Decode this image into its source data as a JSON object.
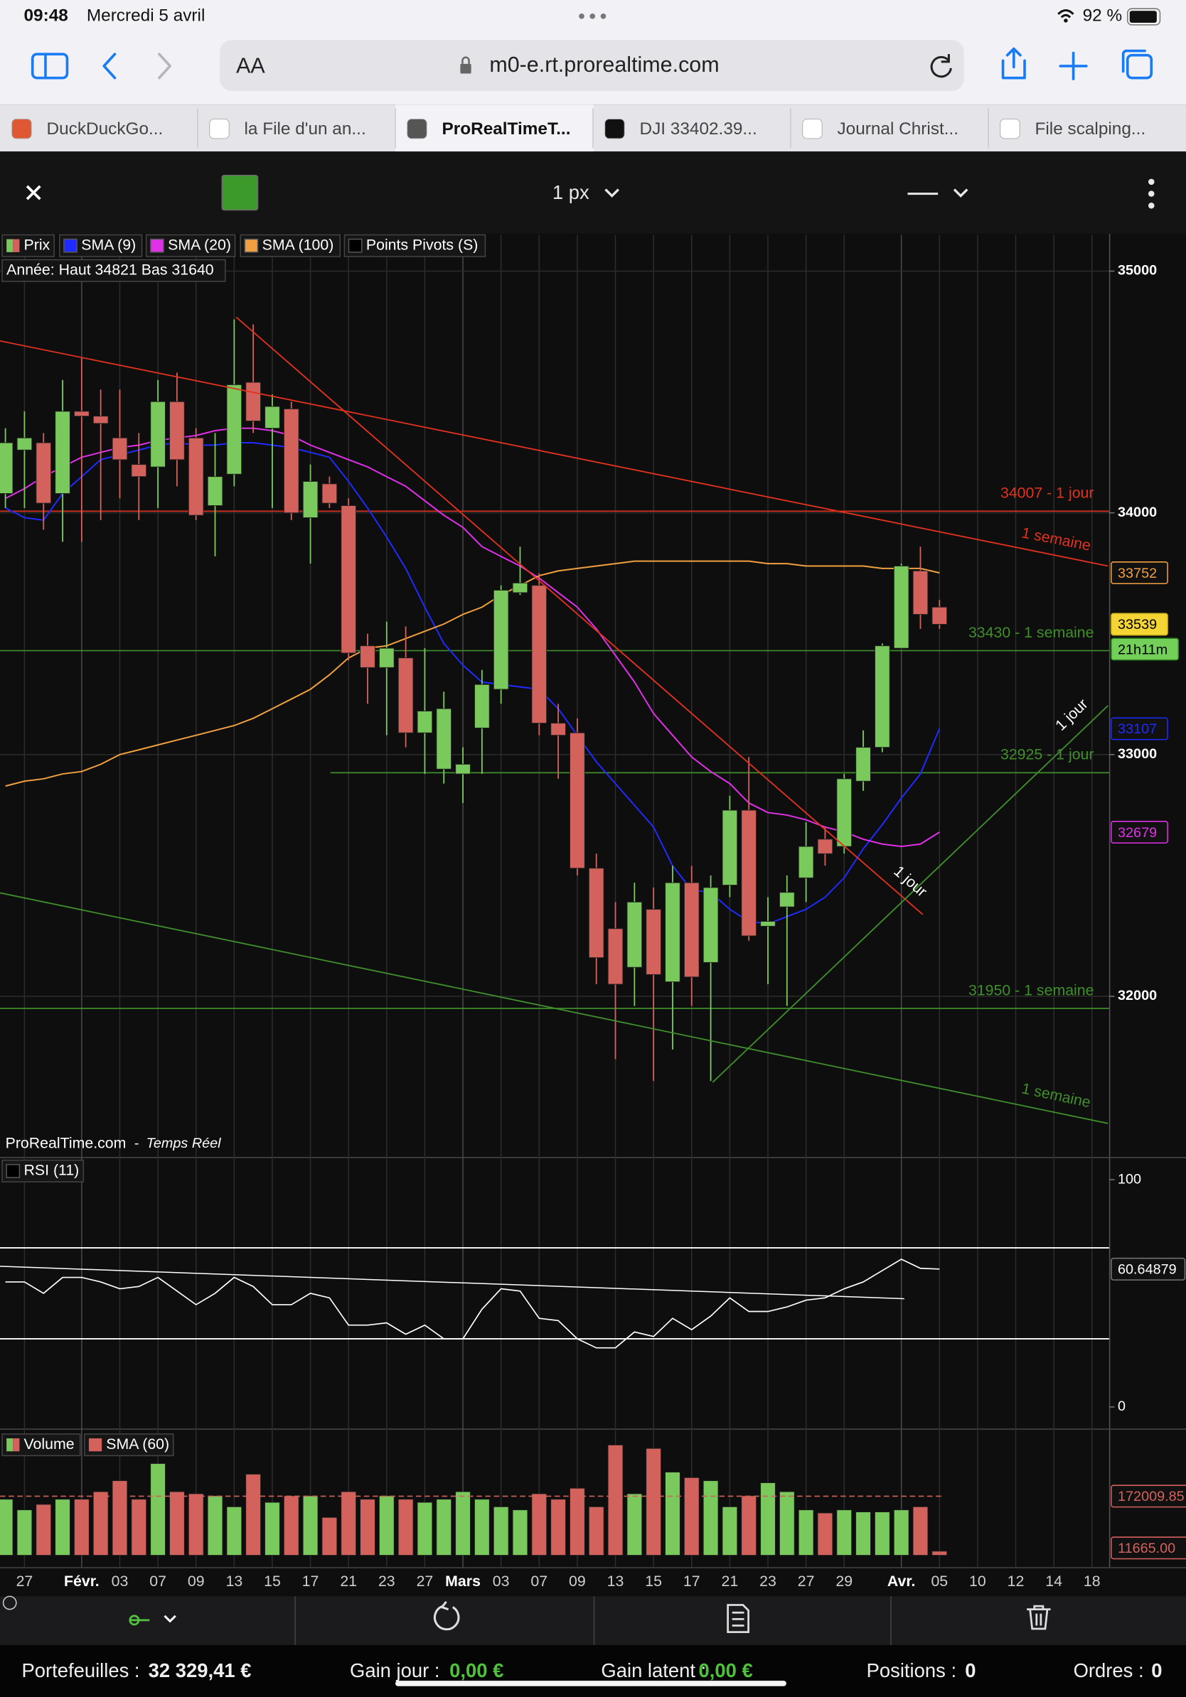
{
  "status_bar": {
    "time": "09:48",
    "date": "Mercredi 5 avril",
    "battery": "92 %"
  },
  "browser": {
    "text_size": "AA",
    "url": "m0-e.rt.prorealtime.com",
    "tabs": [
      "DuckDuckGo...",
      "la File d'un an...",
      "ProRealTimeT...",
      "DJI 33402.39...",
      "Journal Christ...",
      "File scalping..."
    ]
  },
  "chart_toolbar": {
    "line_width": "1 px"
  },
  "chart_data": [
    {
      "type": "candlestick",
      "candle_name": "Prix",
      "extra_legend": "Points Pivots (S)",
      "info": "Année: Haut 34821 Bas 31640",
      "source": "ProRealTime.com",
      "source_note": "Temps Réel",
      "countdown": "21h11m",
      "up_color": "#79c95d",
      "down_color": "#d3625d",
      "grid": true,
      "ylim": [
        31340,
        35150
      ],
      "yticks": [
        35000,
        34000,
        33000,
        32000
      ],
      "categories": [
        null,
        "27",
        null,
        null,
        "Févr.",
        null,
        "03",
        null,
        "07",
        null,
        "09",
        null,
        "13",
        null,
        "15",
        null,
        "17",
        null,
        "21",
        null,
        "23",
        null,
        "27",
        null,
        "Mars",
        null,
        "03",
        null,
        "07",
        null,
        "09",
        null,
        "13",
        null,
        "15",
        null,
        "17",
        null,
        "21",
        null,
        "23",
        null,
        "27",
        null,
        "29",
        null,
        null,
        "Avr.",
        null,
        "05",
        null,
        "10",
        null,
        "12",
        null,
        "14",
        null,
        "18"
      ],
      "candles": [
        {
          "open": 34080,
          "high": 34350,
          "low": 34020,
          "close": 34290
        },
        {
          "open": 34260,
          "high": 34420,
          "low": 34020,
          "close": 34310
        },
        {
          "open": 34290,
          "high": 34330,
          "low": 33930,
          "close": 34040
        },
        {
          "open": 34080,
          "high": 34550,
          "low": 33880,
          "close": 34420
        },
        {
          "open": 34420,
          "high": 34640,
          "low": 33880,
          "close": 34400
        },
        {
          "open": 34400,
          "high": 34510,
          "low": 33970,
          "close": 34370
        },
        {
          "open": 34310,
          "high": 34510,
          "low": 34060,
          "close": 34220
        },
        {
          "open": 34200,
          "high": 34330,
          "low": 33970,
          "close": 34150
        },
        {
          "open": 34190,
          "high": 34550,
          "low": 34020,
          "close": 34460
        },
        {
          "open": 34460,
          "high": 34580,
          "low": 34110,
          "close": 34220
        },
        {
          "open": 34310,
          "high": 34350,
          "low": 33970,
          "close": 33990
        },
        {
          "open": 34030,
          "high": 34330,
          "low": 33820,
          "close": 34150
        },
        {
          "open": 34160,
          "high": 34800,
          "low": 34110,
          "close": 34530
        },
        {
          "open": 34540,
          "high": 34780,
          "low": 34330,
          "close": 34380
        },
        {
          "open": 34350,
          "high": 34490,
          "low": 34020,
          "close": 34440
        },
        {
          "open": 34430,
          "high": 34460,
          "low": 33970,
          "close": 34000
        },
        {
          "open": 33980,
          "high": 34200,
          "low": 33790,
          "close": 34130
        },
        {
          "open": 34120,
          "high": 34150,
          "low": 34020,
          "close": 34040
        },
        {
          "open": 34030,
          "high": 34060,
          "low": 33390,
          "close": 33420
        },
        {
          "open": 33450,
          "high": 33500,
          "low": 33210,
          "close": 33360
        },
        {
          "open": 33360,
          "high": 33550,
          "low": 33080,
          "close": 33440
        },
        {
          "open": 33400,
          "high": 33530,
          "low": 33030,
          "close": 33090
        },
        {
          "open": 33090,
          "high": 33440,
          "low": 32920,
          "close": 33180
        },
        {
          "open": 32940,
          "high": 33260,
          "low": 32880,
          "close": 33190
        },
        {
          "open": 32920,
          "high": 33030,
          "low": 32800,
          "close": 32960
        },
        {
          "open": 33110,
          "high": 33350,
          "low": 32920,
          "close": 33290
        },
        {
          "open": 33270,
          "high": 33700,
          "low": 33210,
          "close": 33680
        },
        {
          "open": 33670,
          "high": 33860,
          "low": 33660,
          "close": 33710
        },
        {
          "open": 33700,
          "high": 33750,
          "low": 33080,
          "close": 33130
        },
        {
          "open": 33130,
          "high": 33210,
          "low": 32900,
          "close": 33080
        },
        {
          "open": 33090,
          "high": 33150,
          "low": 32500,
          "close": 32530
        },
        {
          "open": 32530,
          "high": 32590,
          "low": 32050,
          "close": 32160
        },
        {
          "open": 32280,
          "high": 32390,
          "low": 31740,
          "close": 32050
        },
        {
          "open": 32120,
          "high": 32470,
          "low": 31960,
          "close": 32390
        },
        {
          "open": 32360,
          "high": 32450,
          "low": 31650,
          "close": 32090
        },
        {
          "open": 32060,
          "high": 32540,
          "low": 31780,
          "close": 32470
        },
        {
          "open": 32470,
          "high": 32540,
          "low": 31960,
          "close": 32080
        },
        {
          "open": 32140,
          "high": 32500,
          "low": 31650,
          "close": 32450
        },
        {
          "open": 32460,
          "high": 32830,
          "low": 32410,
          "close": 32770
        },
        {
          "open": 32770,
          "high": 32990,
          "low": 32230,
          "close": 32250
        },
        {
          "open": 32290,
          "high": 32410,
          "low": 32050,
          "close": 32310
        },
        {
          "open": 32370,
          "high": 32500,
          "low": 31960,
          "close": 32430
        },
        {
          "open": 32490,
          "high": 32720,
          "low": 32390,
          "close": 32620
        },
        {
          "open": 32650,
          "high": 32700,
          "low": 32540,
          "close": 32590
        },
        {
          "open": 32620,
          "high": 32920,
          "low": 32590,
          "close": 32900
        },
        {
          "open": 32890,
          "high": 33100,
          "low": 32850,
          "close": 33030
        },
        {
          "open": 33030,
          "high": 33460,
          "low": 33010,
          "close": 33450
        },
        {
          "open": 33440,
          "high": 33790,
          "low": 33440,
          "close": 33780
        },
        {
          "open": 33760,
          "high": 33860,
          "low": 33520,
          "close": 33580
        },
        {
          "open": 33610,
          "high": 33640,
          "low": 33520,
          "close": 33539
        },
        null,
        null,
        null,
        null,
        null,
        null,
        null,
        null
      ],
      "series": [
        {
          "name": "SMA (9)",
          "color": "#1f2bff",
          "values": [
            34020,
            33980,
            33970,
            34080,
            34150,
            34220,
            34240,
            34260,
            34280,
            34290,
            34280,
            34280,
            34290,
            34290,
            34280,
            34270,
            34250,
            34230,
            34130,
            34020,
            33900,
            33770,
            33610,
            33460,
            33370,
            33300,
            33290,
            33280,
            33270,
            33190,
            33080,
            32970,
            32880,
            32790,
            32700,
            32540,
            32440,
            32430,
            32360,
            32310,
            32300,
            32330,
            32360,
            32410,
            32490,
            32610,
            32710,
            32820,
            32920,
            33107,
            null,
            null,
            null,
            null,
            null,
            null,
            null,
            null
          ]
        },
        {
          "name": "SMA (20)",
          "color": "#e030e8",
          "values": [
            34060,
            34100,
            34150,
            34190,
            34230,
            34250,
            34270,
            34280,
            34300,
            34310,
            34320,
            34340,
            34350,
            34350,
            34340,
            34320,
            34280,
            34250,
            34220,
            34190,
            34150,
            34110,
            34050,
            33990,
            33940,
            33860,
            33820,
            33780,
            33730,
            33670,
            33610,
            33520,
            33410,
            33300,
            33170,
            33080,
            32990,
            32930,
            32880,
            32800,
            32760,
            32750,
            32730,
            32700,
            32680,
            32650,
            32630,
            32620,
            32630,
            32679,
            null,
            null,
            null,
            null,
            null,
            null,
            null,
            null
          ]
        },
        {
          "name": "SMA (100)",
          "color": "#f0a040",
          "values": [
            32870,
            32890,
            32900,
            32920,
            32930,
            32960,
            33000,
            33020,
            33040,
            33060,
            33080,
            33100,
            33120,
            33150,
            33190,
            33230,
            33270,
            33330,
            33400,
            33440,
            33450,
            33480,
            33510,
            33540,
            33580,
            33610,
            33660,
            33700,
            33740,
            33760,
            33770,
            33780,
            33790,
            33800,
            33800,
            33800,
            33800,
            33800,
            33800,
            33800,
            33790,
            33790,
            33780,
            33780,
            33780,
            33780,
            33770,
            33770,
            33770,
            33752,
            null,
            null,
            null,
            null,
            null,
            null,
            null,
            null
          ]
        }
      ],
      "levels": [
        {
          "value": 34007,
          "label": "34007 - 1 jour",
          "color": "#e2321f"
        },
        {
          "value": 33430,
          "label": "33430 - 1 semaine",
          "color": "#3f8f2c"
        },
        {
          "value": 32925,
          "label": "32925 - 1 jour",
          "color": "#3f8f2c"
        },
        {
          "value": 31950,
          "label": "31950 - 1 semaine",
          "color": "#3f8f2c"
        }
      ],
      "trend_labels": [
        "1 semaine",
        "1 jour",
        "1 jour",
        "1 semaine"
      ]
    },
    {
      "type": "line",
      "title": "RSI (11)",
      "color": "#ffffff",
      "ylim": [
        0,
        100
      ],
      "yticks": [
        100,
        0
      ],
      "levels": [
        70,
        30
      ],
      "values": [
        55,
        55,
        50,
        57,
        57,
        55,
        52,
        53,
        57,
        51,
        45,
        50,
        57,
        53,
        45,
        45,
        50,
        48,
        36,
        36,
        37,
        32,
        36,
        30,
        30,
        43,
        52,
        51,
        39,
        38,
        30,
        26,
        26,
        33,
        31,
        39,
        34,
        40,
        48,
        42,
        42,
        44,
        47,
        48,
        52,
        55,
        60,
        65,
        61,
        60.64879
      ]
    },
    {
      "type": "bar",
      "title": "Volume",
      "sma_name": "SMA (60)",
      "sma_color": "#d3625d",
      "sma": 172009.85,
      "ylim": [
        0,
        350000
      ],
      "values": [
        163000,
        132000,
        148000,
        163000,
        163000,
        185000,
        217000,
        163000,
        267000,
        185000,
        179000,
        173000,
        141000,
        236000,
        154000,
        173000,
        173000,
        110000,
        185000,
        163000,
        173000,
        163000,
        154000,
        163000,
        185000,
        163000,
        141000,
        132000,
        179000,
        163000,
        195000,
        141000,
        321000,
        179000,
        311000,
        242000,
        226000,
        217000,
        141000,
        173000,
        211000,
        185000,
        132000,
        123000,
        132000,
        126000,
        126000,
        132000,
        141000,
        11665
      ],
      "value_labels": [
        null,
        null,
        null,
        null,
        null,
        null,
        null,
        null,
        null,
        null,
        null,
        null,
        null,
        null,
        null,
        null,
        null,
        null,
        null,
        null,
        null,
        null,
        null,
        null,
        null,
        null,
        null,
        null,
        null,
        null,
        null,
        null,
        null,
        null,
        null,
        null,
        null,
        null,
        null,
        null,
        null,
        null,
        null,
        null,
        null,
        null,
        null,
        null,
        null,
        "11665.00"
      ]
    }
  ],
  "footer": {
    "portfolio_label": "Portefeuilles : ",
    "portfolio_value": "32 329,41 €",
    "day_gain_label": "Gain jour : ",
    "day_gain_value": "0,00 €",
    "latent_gain_label": "Gain latent : ",
    "latent_gain_value": "0,00 €",
    "positions_label": "Positions : ",
    "positions_value": "0",
    "orders_label": "Ordres : ",
    "orders_value": "0"
  }
}
